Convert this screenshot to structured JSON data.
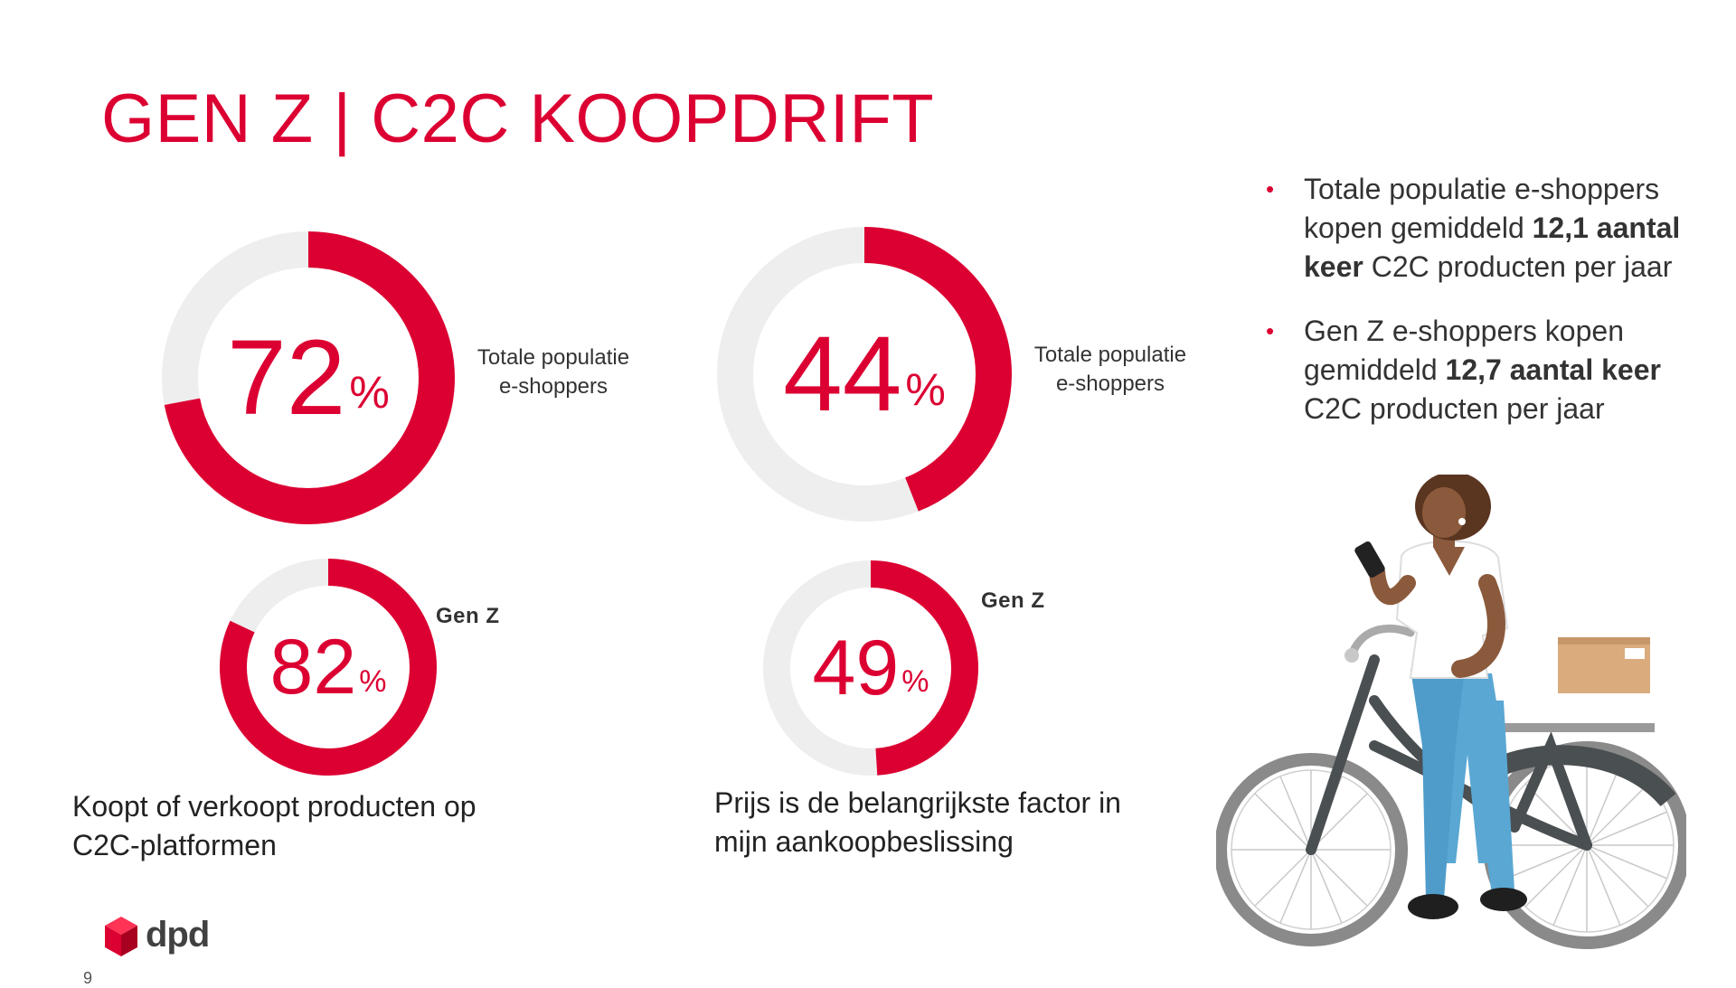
{
  "title": "GEN Z | C2C KOOPDRIFT",
  "colors": {
    "accent": "#dc0032",
    "track": "#eeeeee"
  },
  "chart_data": [
    {
      "type": "pie",
      "style": "donut",
      "group": "Koopt of verkoopt producten op C2C-platformen",
      "series": [
        {
          "name": "Totale populatie e-shoppers",
          "value": 72,
          "unit": "%"
        },
        {
          "name": "Gen Z",
          "value": 82,
          "unit": "%"
        }
      ]
    },
    {
      "type": "pie",
      "style": "donut",
      "group": "Prijs is de belangrijkste factor in mijn aankoopbeslissing",
      "series": [
        {
          "name": "Totale populatie e-shoppers",
          "value": 44,
          "unit": "%"
        },
        {
          "name": "Gen Z",
          "value": 49,
          "unit": "%"
        }
      ]
    }
  ],
  "labels": {
    "pop_line1": "Totale populatie",
    "pop_line2": "e-shoppers",
    "genz": "Gen Z",
    "percent": "%"
  },
  "captions": {
    "left_line1": "Koopt of verkoopt producten op",
    "left_line2": "C2C-platformen",
    "right_line1": "Prijs is de belangrijkste factor in",
    "right_line2": "mijn aankoopbeslissing"
  },
  "bullets": [
    {
      "pre": "Totale populatie e-shoppers kopen gemiddeld ",
      "bold": "12,1 aantal keer",
      "post": " C2C producten per jaar"
    },
    {
      "pre": "Gen Z e-shoppers kopen gemiddeld ",
      "bold": "12,7 aantal keer",
      "post": " C2C producten per jaar"
    }
  ],
  "bullet_marker": "•",
  "logo": {
    "name": "dpd-logo-icon",
    "text": "dpd"
  },
  "page_number": "9"
}
